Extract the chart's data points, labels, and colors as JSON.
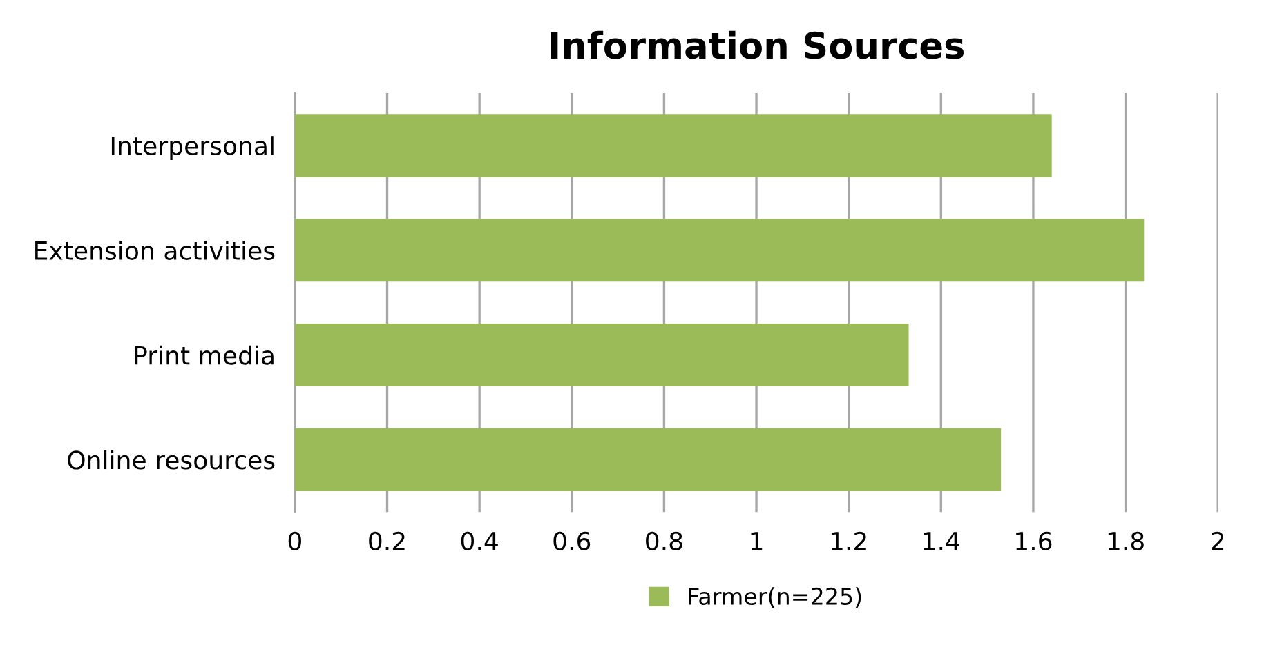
{
  "chart_data": {
    "type": "bar",
    "orientation": "horizontal",
    "title": "Information Sources",
    "categories": [
      "Interpersonal",
      "Extension activities",
      "Print media",
      "Online resources"
    ],
    "series": [
      {
        "name": "Farmer(n=225)",
        "color": "#9bbb59",
        "values": [
          1.64,
          1.84,
          1.33,
          1.53
        ]
      }
    ],
    "xlim": [
      0,
      2
    ],
    "xticks": [
      0,
      0.2,
      0.4,
      0.6,
      0.8,
      1,
      1.2,
      1.4,
      1.6,
      1.8,
      2
    ],
    "grid": "x",
    "legend": "bottom"
  }
}
